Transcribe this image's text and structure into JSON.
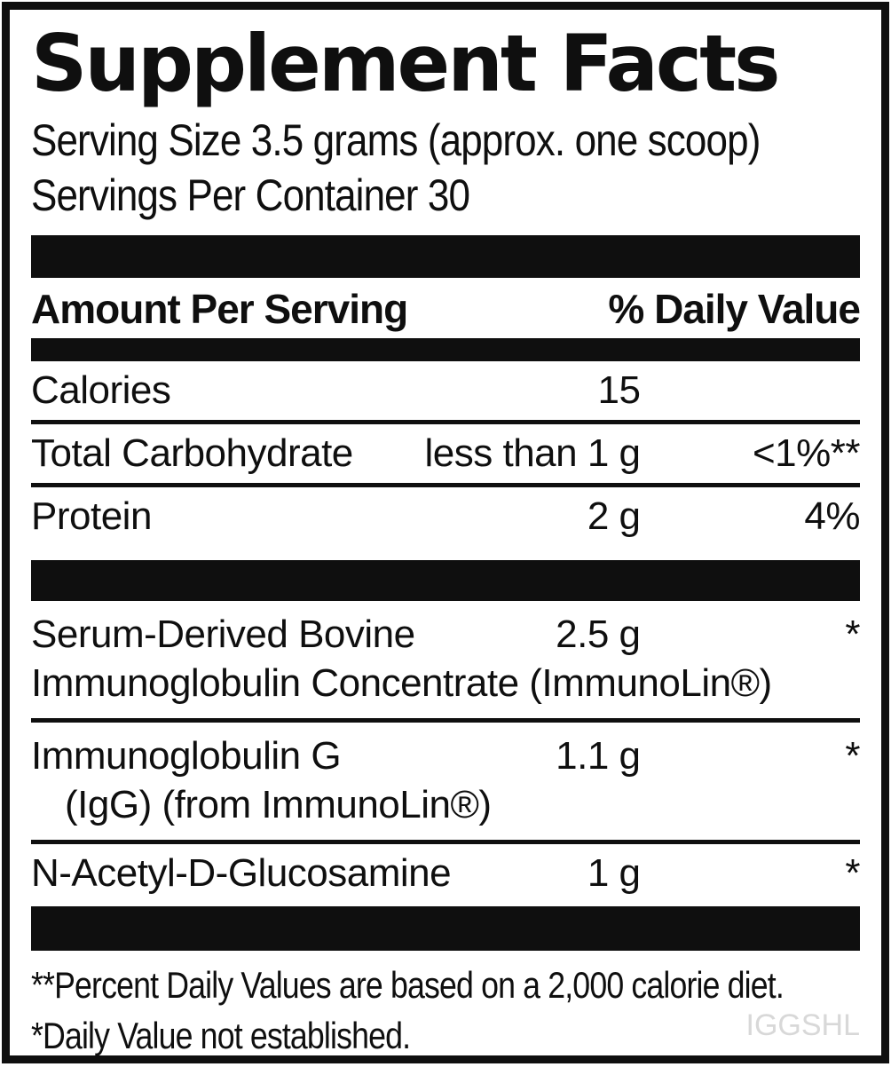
{
  "label": {
    "title": "Supplement Facts",
    "serving_size": "Serving Size 3.5 grams (approx. one scoop)",
    "servings_per_container": "Servings Per Container 30",
    "header": {
      "amount_per_serving": "Amount Per Serving",
      "percent_daily_value": "% Daily Value"
    },
    "rows": [
      {
        "name": "Calories",
        "amount": "15",
        "dv": ""
      },
      {
        "name": "Total Carbohydrate",
        "amount": "less than 1 g",
        "dv": "<1%**"
      },
      {
        "name": "Protein",
        "amount": "2 g",
        "dv": "4%"
      }
    ],
    "ingredients": [
      {
        "line1": "Serum-Derived Bovine",
        "line2": "Immunoglobulin Concentrate (ImmunoLin®)",
        "amount": "2.5 g",
        "dv": "*"
      },
      {
        "line1": "Immunoglobulin G",
        "line2": "(IgG) (from ImmunoLin®)",
        "amount": "1.1 g",
        "dv": "*"
      },
      {
        "line1": "N-Acetyl-D-Glucosamine",
        "line2": "",
        "amount": "1 g",
        "dv": "*"
      }
    ],
    "footnotes": [
      "**Percent Daily Values are based on a 2,000 calorie diet.",
      "*Daily Value not established."
    ],
    "watermark": "IGGSHL",
    "colors": {
      "text": "#0f0f0f",
      "bars": "#0f0f0f",
      "watermark": "#d8d8d8"
    }
  }
}
